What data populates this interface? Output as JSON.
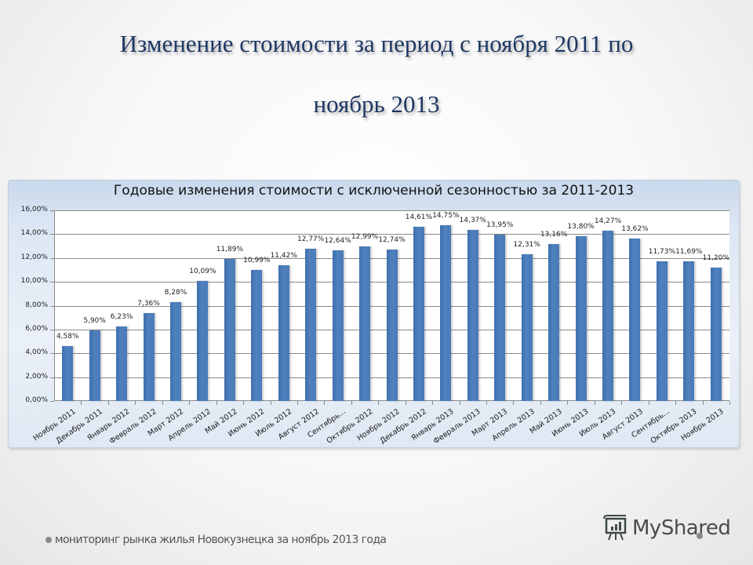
{
  "slide": {
    "title_line1": "Изменение стоимости за период с ноября 2011 по",
    "title_line2": "ноябрь 2013",
    "footer_text": "мониторинг рынка жилья Новокузнецка за ноябрь 2013 года",
    "watermark": "MyShared"
  },
  "colors": {
    "bar": "#4f81bd",
    "title": "#1f3864",
    "chart_background": "#dde7f4"
  },
  "chart_data": {
    "type": "bar",
    "title": "Годовые изменения стоимости с исключенной сезонностью за 2011-2013",
    "xlabel": "",
    "ylabel": "",
    "ylim": [
      0,
      16
    ],
    "y_ticks": [
      "0,00%",
      "2,00%",
      "4,00%",
      "6,00%",
      "8,00%",
      "10,00%",
      "12,00%",
      "14,00%",
      "16,00%"
    ],
    "grid": true,
    "legend": "none",
    "categories": [
      "Ноябрь 2011",
      "Декабрь 2011",
      "Январь 2012",
      "Февраль 2012",
      "Март 2012",
      "Апрель 2012",
      "Май 2012",
      "Июнь 2012",
      "Июль 2012",
      "Август 2012",
      "Сентябрь...",
      "Октябрь 2012",
      "Ноябрь 2012",
      "Декабрь 2012",
      "Январь 2013",
      "Февраль 2013",
      "Март 2013",
      "Апрель 2013",
      "Май 2013",
      "Июнь 2013",
      "Июль 2013",
      "Август 2013",
      "Сентябрь...",
      "Октябрь 2013",
      "Ноябрь 2013"
    ],
    "values": [
      4.58,
      5.9,
      6.23,
      7.36,
      8.28,
      10.09,
      11.89,
      10.99,
      11.42,
      12.77,
      12.64,
      12.99,
      12.74,
      14.61,
      14.75,
      14.37,
      13.95,
      12.31,
      13.16,
      13.8,
      14.27,
      13.62,
      11.73,
      11.69,
      11.2
    ],
    "data_labels": [
      "4,58%",
      "5,90%",
      "6,23%",
      "7,36%",
      "8,28%",
      "10,09%",
      "11,89%",
      "10,99%",
      "11,42%",
      "12,77%",
      "12,64%",
      "12,99%",
      "12,74%",
      "14,61%",
      "14,75%",
      "14,37%",
      "13,95%",
      "12,31%",
      "13,16%",
      "13,80%",
      "14,27%",
      "13,62%",
      "11,73%",
      "11,69%",
      "11,20%"
    ],
    "data_label_overrides": {
      "22": "",
      "23": ""
    },
    "unit": "%"
  }
}
